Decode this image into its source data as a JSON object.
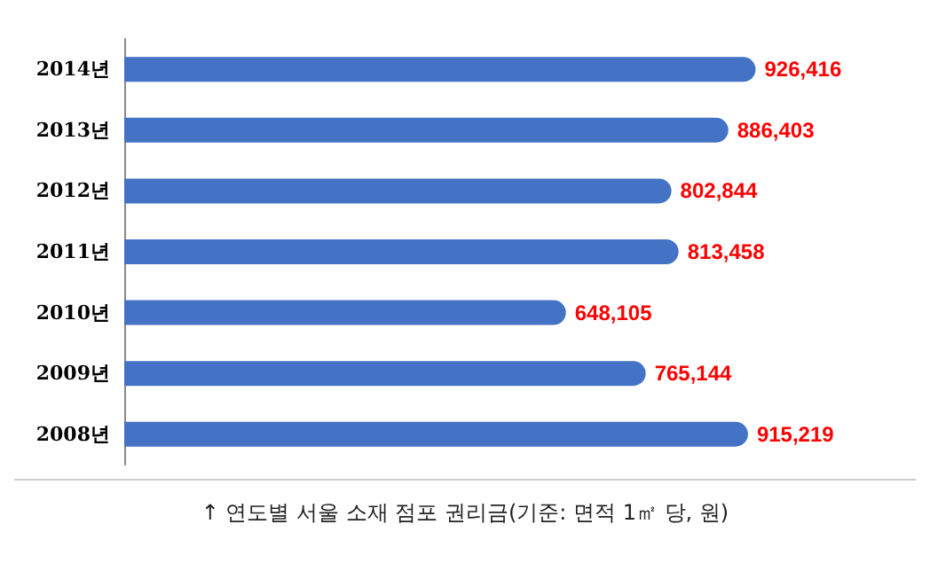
{
  "chart_data": {
    "type": "bar",
    "orientation": "horizontal",
    "categories": [
      "2014년",
      "2013년",
      "2012년",
      "2011년",
      "2010년",
      "2009년",
      "2008년"
    ],
    "values": [
      926416,
      886403,
      802844,
      813458,
      648105,
      765144,
      915219
    ],
    "value_labels": [
      "926,416",
      "886,403",
      "802,844",
      "813,458",
      "648,105",
      "765,144",
      "915,219"
    ],
    "color": "#4472c4",
    "grid": false,
    "annotations": [
      "↑ 연도별 서울 소재 점포 권리금(기준: 면적 1㎡ 당, 원)"
    ]
  }
}
